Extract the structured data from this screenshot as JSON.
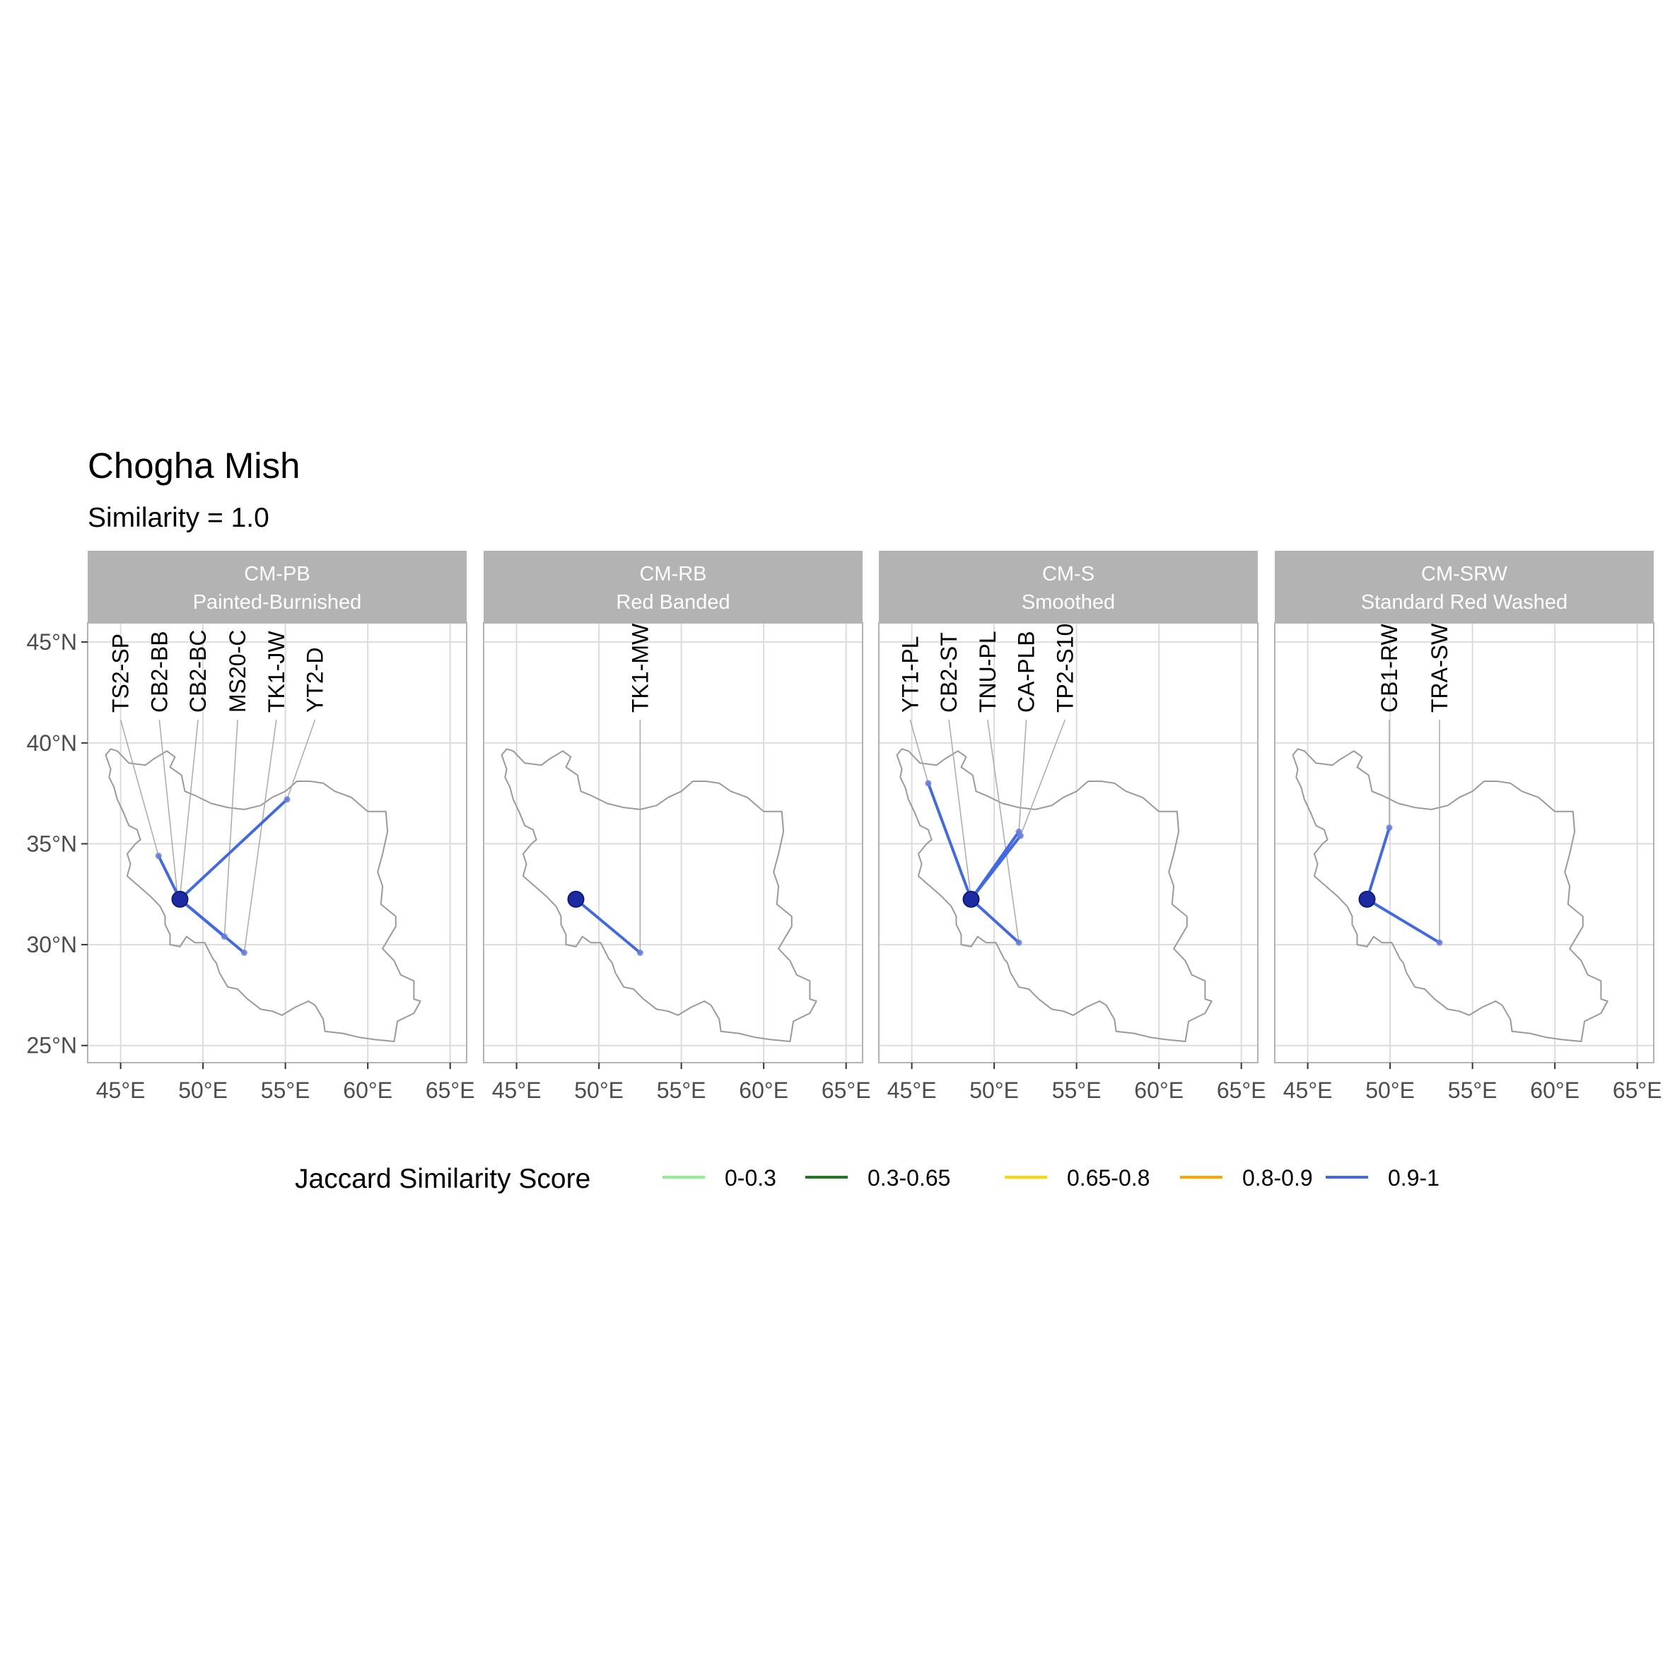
{
  "title": "Chogha Mish",
  "subtitle": "Similarity = 1.0",
  "origin": {
    "lon": 48.6,
    "lat": 32.25
  },
  "axes": {
    "x_ticks": [
      {
        "value": 45,
        "label": "45°E"
      },
      {
        "value": 50,
        "label": "50°E"
      },
      {
        "value": 55,
        "label": "55°E"
      },
      {
        "value": 60,
        "label": "60°E"
      },
      {
        "value": 65,
        "label": "65°E"
      }
    ],
    "y_ticks": [
      {
        "value": 45,
        "label": "45°N"
      },
      {
        "value": 40,
        "label": "40°N"
      },
      {
        "value": 35,
        "label": "35°N"
      },
      {
        "value": 30,
        "label": "30°N"
      },
      {
        "value": 25,
        "label": "25°N"
      }
    ],
    "xlim": [
      43,
      66
    ],
    "ylim": [
      24.15,
      45.95
    ]
  },
  "colors": {
    "strip": "#b3b3b3",
    "strip_text": "#ffffff",
    "grid": "#dcdcdc",
    "panel_border": "#b3b3b3",
    "outline": "#9a9a9a",
    "origin_point": "#1c2ba1",
    "leader": "#aaaaaa"
  },
  "panels": [
    {
      "code": "CM-PB",
      "name": "Painted-Burnished",
      "sites": [
        {
          "label": "TS2-SP",
          "lon": 47.3,
          "lat": 34.4,
          "label_lon": 45.0
        },
        {
          "label": "CB2-BB",
          "lon": 48.45,
          "lat": 32.45,
          "label_lon": 47.35
        },
        {
          "label": "CB2-BC",
          "lon": 48.6,
          "lat": 32.35,
          "label_lon": 49.7
        },
        {
          "label": "MS20-C",
          "lon": 51.3,
          "lat": 30.4,
          "label_lon": 52.1
        },
        {
          "label": "TK1-JW",
          "lon": 52.5,
          "lat": 29.6,
          "label_lon": 54.45
        },
        {
          "label": "YT2-D",
          "lon": 55.1,
          "lat": 37.2,
          "label_lon": 56.8
        }
      ]
    },
    {
      "code": "CM-RB",
      "name": "Red Banded",
      "sites": [
        {
          "label": "TK1-MW",
          "lon": 52.5,
          "lat": 29.6,
          "label_lon": 52.5
        }
      ]
    },
    {
      "code": "CM-S",
      "name": "Smoothed",
      "sites": [
        {
          "label": "YT1-PL",
          "lon": 46.0,
          "lat": 38.0,
          "label_lon": 44.9
        },
        {
          "label": "CB2-ST",
          "lon": 48.6,
          "lat": 32.3,
          "label_lon": 47.25
        },
        {
          "label": "TNU-PL",
          "lon": 51.5,
          "lat": 30.1,
          "label_lon": 49.6
        },
        {
          "label": "CA-PLB",
          "lon": 51.5,
          "lat": 35.6,
          "label_lon": 51.95
        },
        {
          "label": "TP2-S10",
          "lon": 51.6,
          "lat": 35.4,
          "label_lon": 54.3
        }
      ]
    },
    {
      "code": "CM-SRW",
      "name": "Standard Red Washed",
      "sites": [
        {
          "label": "CB1-RW",
          "lon": 49.95,
          "lat": 35.8,
          "label_lon": 49.95
        },
        {
          "label": "TRA-SW",
          "lon": 53.0,
          "lat": 30.1,
          "label_lon": 53.0
        }
      ]
    }
  ],
  "legend": {
    "title": "Jaccard Similarity Score",
    "items": [
      {
        "label": "0-0.3",
        "color": "#90ee90"
      },
      {
        "label": "0.3-0.65",
        "color": "#1f7a1f"
      },
      {
        "label": "0.65-0.8",
        "color": "#ffd700"
      },
      {
        "label": "0.8-0.9",
        "color": "#ffa500"
      },
      {
        "label": "0.9-1",
        "color": "#4169e1"
      }
    ]
  },
  "link_color": "#4169e1"
}
